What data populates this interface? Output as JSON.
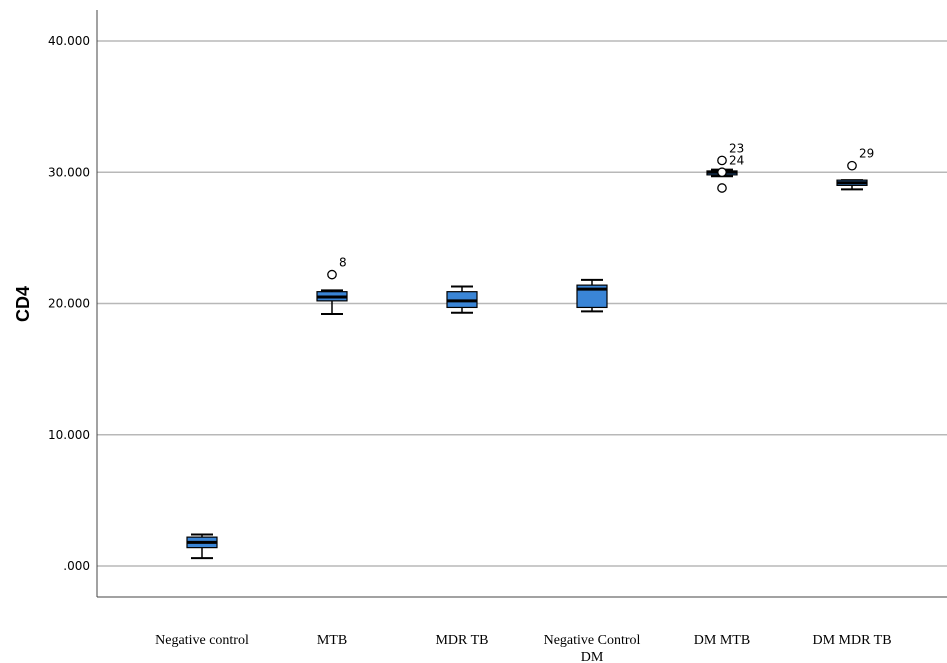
{
  "chart_data": {
    "type": "box",
    "title": "",
    "ylabel": "CD4",
    "xlabel": "",
    "ylim": [
      -2.5,
      42.5
    ],
    "yticks": [
      0,
      10,
      20,
      30,
      40
    ],
    "ytick_labels": [
      ".000",
      "10.000",
      "20.000",
      "30.000",
      "40.000"
    ],
    "grid": "horizontal",
    "box_color": "#3a85d6",
    "categories": [
      {
        "label": "Negative control",
        "label_lines": [
          "Negative control"
        ],
        "whisker_low": 0.6,
        "q1": 1.4,
        "median": 1.8,
        "q3": 2.2,
        "whisker_high": 2.4,
        "outliers": []
      },
      {
        "label": "MTB",
        "label_lines": [
          "MTB"
        ],
        "whisker_low": 19.2,
        "q1": 20.2,
        "median": 20.5,
        "q3": 20.9,
        "whisker_high": 21.0,
        "outliers": [
          {
            "value": 22.2,
            "label": "8"
          }
        ]
      },
      {
        "label": "MDR TB",
        "label_lines": [
          "MDR TB"
        ],
        "whisker_low": 19.3,
        "q1": 19.7,
        "median": 20.2,
        "q3": 20.9,
        "whisker_high": 21.3,
        "outliers": []
      },
      {
        "label": "Negative Control DM",
        "label_lines": [
          "Negative Control",
          "DM"
        ],
        "whisker_low": 19.4,
        "q1": 19.7,
        "median": 21.1,
        "q3": 21.4,
        "whisker_high": 21.8,
        "outliers": []
      },
      {
        "label": "DM MTB",
        "label_lines": [
          "DM MTB"
        ],
        "whisker_low": 29.7,
        "q1": 29.8,
        "median": 30.0,
        "q3": 30.1,
        "whisker_high": 30.2,
        "outliers": [
          {
            "value": 30.9,
            "label": "23"
          },
          {
            "value": 28.8,
            "label": ""
          },
          {
            "value": 30.0,
            "label": "24"
          }
        ]
      },
      {
        "label": "DM MDR TB",
        "label_lines": [
          "DM MDR TB"
        ],
        "whisker_low": 28.7,
        "q1": 29.0,
        "median": 29.2,
        "q3": 29.4,
        "whisker_high": 29.4,
        "outliers": [
          {
            "value": 30.5,
            "label": "29"
          }
        ]
      }
    ]
  }
}
